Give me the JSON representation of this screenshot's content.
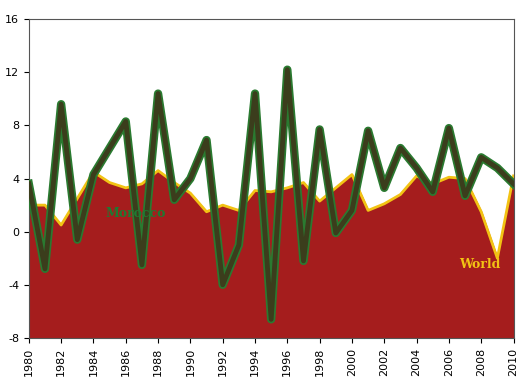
{
  "chart_data": {
    "type": "line",
    "x": [
      1980,
      1981,
      1982,
      1983,
      1984,
      1985,
      1986,
      1987,
      1988,
      1989,
      1990,
      1991,
      1992,
      1993,
      1994,
      1995,
      1996,
      1997,
      1998,
      1999,
      2000,
      2001,
      2002,
      2003,
      2004,
      2005,
      2006,
      2007,
      2008,
      2009,
      2010
    ],
    "series": [
      {
        "name": "World",
        "type": "area",
        "color": "#f2c314",
        "values": [
          2.0,
          2.0,
          0.5,
          2.5,
          4.5,
          3.7,
          3.3,
          3.6,
          4.6,
          3.7,
          2.9,
          1.5,
          2.0,
          1.6,
          3.1,
          3.0,
          3.3,
          3.7,
          2.3,
          3.3,
          4.3,
          1.6,
          2.1,
          2.8,
          4.2,
          3.6,
          4.1,
          4.0,
          1.5,
          -2.0,
          4.2
        ]
      },
      {
        "name": "Morocco",
        "type": "line",
        "color": "#3b3d1c",
        "values": [
          3.6,
          -2.8,
          9.6,
          -0.6,
          4.3,
          6.3,
          8.3,
          -2.5,
          10.4,
          2.4,
          4.0,
          6.9,
          -4.0,
          -1.0,
          10.4,
          -6.6,
          12.2,
          -2.2,
          7.7,
          -0.1,
          1.6,
          7.6,
          3.3,
          6.3,
          4.8,
          3.0,
          7.8,
          2.7,
          5.6,
          4.8,
          3.6
        ]
      }
    ],
    "xlim": [
      1980,
      2010
    ],
    "xticks": [
      1980,
      1982,
      1984,
      1986,
      1988,
      1990,
      1992,
      1994,
      1996,
      1998,
      2000,
      2002,
      2004,
      2006,
      2008,
      2010
    ],
    "ylim": [
      -8,
      16
    ],
    "yticks": [
      -8,
      -4,
      0,
      4,
      8,
      12,
      16
    ],
    "grid": false
  }
}
